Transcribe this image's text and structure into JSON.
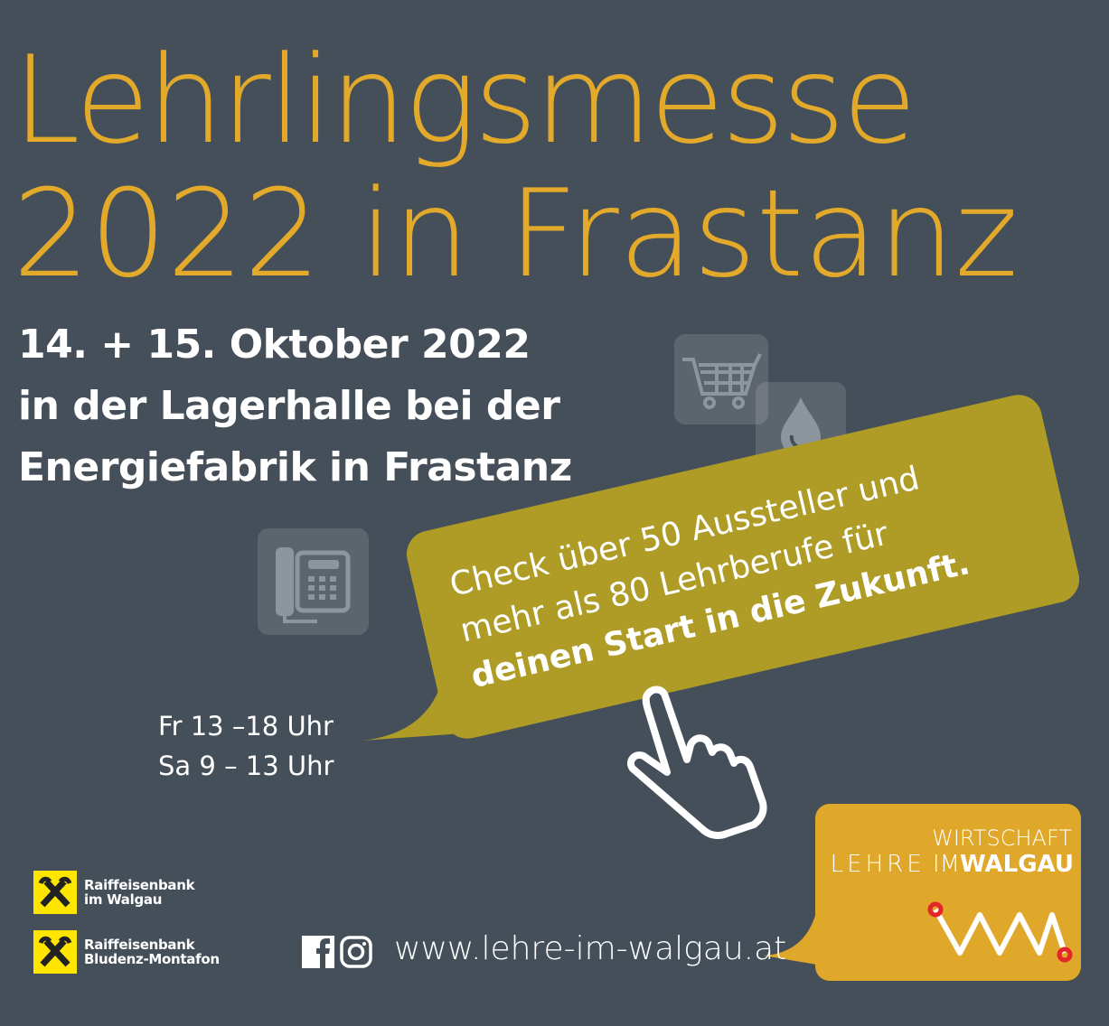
{
  "headline": {
    "line1": "Lehrlingsmesse",
    "line2": "2022 in Frastanz"
  },
  "details": {
    "date": "14. + 15. Oktober 2022",
    "venue1": "in der Lagerhalle bei der",
    "venue2": "Energiefabrik in Frastanz"
  },
  "hours": {
    "fri": "Fr 13 –18 Uhr",
    "sat": "Sa 9 – 13 Uhr"
  },
  "bubble": {
    "line1": "Check über 50 Aussteller und",
    "line2": "mehr als 80 Lehrberufe für",
    "line3": "deinen Start in die Zukunft."
  },
  "icons": [
    "shopping-cart-icon",
    "water-drop-icon",
    "telephone-icon",
    "pointing-hand-icon",
    "facebook-icon",
    "instagram-icon"
  ],
  "logo": {
    "top": "WIRTSCHAFT",
    "left": "LEHRE",
    "mid": "IM",
    "right": "WALGAU"
  },
  "sponsors": [
    {
      "line1": "Raiffeisenbank",
      "line2": "im Walgau"
    },
    {
      "line1": "Raiffeisenbank",
      "line2": "Bludenz-Montafon"
    }
  ],
  "url": "www.lehre-im-walgau.at",
  "colors": {
    "background": "#444f59",
    "headline": "#e2a92b",
    "bubble": "#ae9c27",
    "logo": "#e0a82a",
    "raiffeisen": "#ffe600"
  }
}
